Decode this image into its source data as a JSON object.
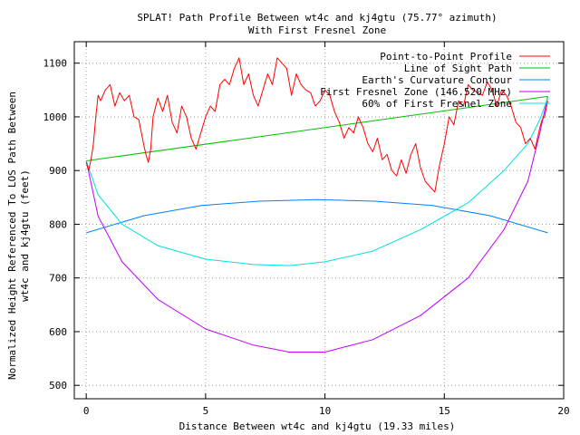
{
  "chart_data": {
    "type": "line",
    "title": "SPLAT! Path Profile Between wt4c and kj4gtu (75.77° azimuth)",
    "subtitle": "With First Fresnel Zone",
    "xlabel": "Distance Between wt4c and kj4gtu (19.33 miles)",
    "ylabel_line1": "Normalized Height Referenced To LOS Path Between",
    "ylabel_line2": "wt4c and kj4gtu (feet)",
    "xlim": [
      -0.5,
      20
    ],
    "ylim": [
      475,
      1140
    ],
    "xticks": [
      0,
      5,
      10,
      15,
      20
    ],
    "yticks": [
      500,
      600,
      700,
      800,
      900,
      1000,
      1100
    ],
    "grid": true,
    "legend_position": "top-right",
    "path_length": 19.33,
    "series": [
      {
        "name": "Point-to-Point Profile",
        "color": "#ff0000",
        "x": [
          0,
          0.1,
          0.2,
          0.3,
          0.4,
          0.5,
          0.6,
          0.8,
          1.0,
          1.2,
          1.4,
          1.6,
          1.8,
          2.0,
          2.2,
          2.4,
          2.5,
          2.6,
          2.7,
          2.8,
          3.0,
          3.2,
          3.4,
          3.6,
          3.8,
          4.0,
          4.2,
          4.4,
          4.6,
          4.8,
          5.0,
          5.2,
          5.4,
          5.6,
          5.8,
          6.0,
          6.2,
          6.4,
          6.6,
          6.8,
          7.0,
          7.2,
          7.4,
          7.6,
          7.8,
          8.0,
          8.2,
          8.4,
          8.6,
          8.8,
          9.0,
          9.2,
          9.4,
          9.6,
          9.8,
          10.0,
          10.2,
          10.4,
          10.6,
          10.8,
          11.0,
          11.2,
          11.4,
          11.6,
          11.8,
          12.0,
          12.2,
          12.4,
          12.6,
          12.8,
          13.0,
          13.2,
          13.4,
          13.6,
          13.8,
          14.0,
          14.2,
          14.4,
          14.6,
          14.8,
          15.0,
          15.2,
          15.4,
          15.6,
          15.8,
          16.0,
          16.2,
          16.4,
          16.6,
          16.8,
          17.0,
          17.2,
          17.4,
          17.6,
          17.8,
          18.0,
          18.2,
          18.4,
          18.6,
          18.8,
          19.0,
          19.1,
          19.2,
          19.33
        ],
        "y": [
          915,
          900,
          920,
          950,
          1000,
          1040,
          1030,
          1050,
          1060,
          1020,
          1045,
          1030,
          1040,
          1000,
          995,
          950,
          930,
          915,
          940,
          1000,
          1035,
          1010,
          1040,
          990,
          970,
          1020,
          1000,
          960,
          940,
          970,
          1000,
          1020,
          1010,
          1060,
          1070,
          1060,
          1090,
          1110,
          1060,
          1080,
          1040,
          1020,
          1050,
          1080,
          1060,
          1110,
          1100,
          1090,
          1040,
          1080,
          1060,
          1050,
          1045,
          1020,
          1030,
          1050,
          1040,
          1010,
          990,
          960,
          980,
          970,
          1000,
          980,
          950,
          935,
          960,
          920,
          930,
          900,
          890,
          920,
          895,
          930,
          950,
          905,
          880,
          870,
          860,
          910,
          950,
          1000,
          985,
          1030,
          1020,
          1060,
          1050,
          1045,
          1040,
          1065,
          1050,
          1020,
          1050,
          1040,
          1020,
          990,
          980,
          950,
          960,
          940,
          980,
          995,
          1000,
          1030
        ]
      },
      {
        "name": "Line of Sight Path",
        "color": "#00c000",
        "x": [
          0,
          19.33
        ],
        "y": [
          918,
          1038
        ]
      },
      {
        "name": "Earth's Curvature Contour",
        "color": "#0080ff",
        "x": [
          0,
          2.4165,
          4.8325,
          7.2488,
          9.665,
          12.0812,
          14.4975,
          16.9138,
          19.33
        ],
        "y": [
          784,
          816,
          835,
          843,
          846,
          843,
          835,
          816,
          784
        ]
      },
      {
        "name": "First Fresnel Zone (146.520 MHz)",
        "color": "#c000ff",
        "x": [
          0,
          0.5,
          1.5,
          3,
          5,
          7,
          8.5,
          10,
          12,
          14,
          16,
          17.5,
          18.5,
          19,
          19.33
        ],
        "y": [
          918,
          815,
          730,
          660,
          605,
          575,
          562,
          562,
          585,
          630,
          700,
          790,
          880,
          970,
          1038
        ]
      },
      {
        "name": "60% of First Fresnel Zone",
        "color": "#00e0e0",
        "x": [
          0,
          0.5,
          1.5,
          3,
          5,
          7,
          8.5,
          10,
          12,
          14,
          16,
          17.5,
          18.5,
          19,
          19.33
        ],
        "y": [
          918,
          855,
          800,
          760,
          735,
          725,
          723,
          730,
          750,
          790,
          840,
          900,
          950,
          995,
          1035
        ]
      }
    ]
  }
}
